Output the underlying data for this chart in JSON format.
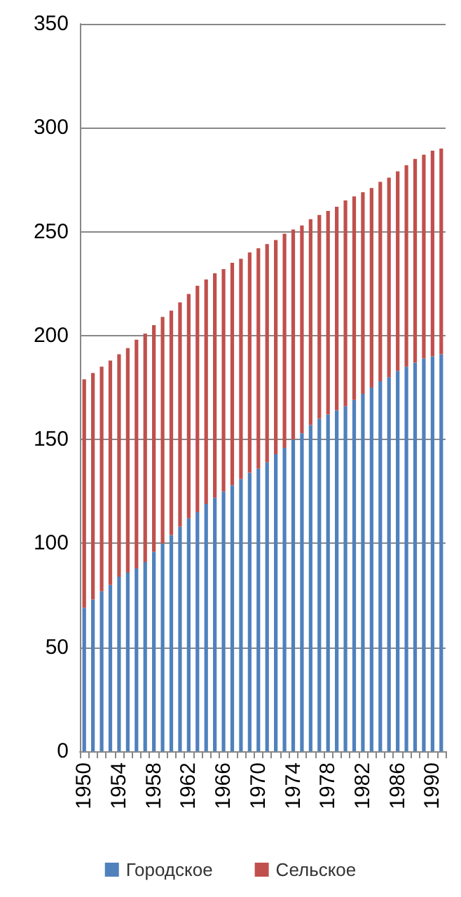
{
  "chart_data": {
    "type": "bar",
    "stacked": true,
    "categories": [
      "1950",
      null,
      null,
      null,
      "1954",
      null,
      null,
      null,
      "1958",
      null,
      null,
      null,
      "1962",
      null,
      null,
      null,
      "1966",
      null,
      null,
      null,
      "1970",
      null,
      null,
      null,
      "1974",
      null,
      null,
      null,
      "1978",
      null,
      null,
      null,
      "1982",
      null,
      null,
      null,
      "1986",
      null,
      null,
      null,
      "1990",
      null
    ],
    "series": [
      {
        "name": "Городское",
        "color": "#4f81bd",
        "values": [
          69,
          73,
          77,
          80,
          84,
          86,
          88,
          91,
          96,
          100,
          104,
          108,
          112,
          115,
          119,
          122,
          125,
          128,
          131,
          134,
          136,
          139,
          143,
          146,
          150,
          153,
          157,
          160,
          162,
          164,
          166,
          169,
          172,
          175,
          178,
          180,
          183,
          185,
          187,
          189,
          190,
          191
        ]
      },
      {
        "name": "Сельское",
        "color": "#c0504d",
        "values": [
          110,
          109,
          108,
          108,
          107,
          108,
          110,
          110,
          109,
          109,
          108,
          108,
          108,
          109,
          108,
          108,
          107,
          107,
          106,
          106,
          106,
          105,
          103,
          103,
          101,
          100,
          99,
          98,
          98,
          98,
          99,
          98,
          97,
          96,
          96,
          96,
          96,
          97,
          98,
          98,
          99,
          99
        ]
      }
    ],
    "ylim": [
      0,
      350
    ],
    "yticks": [
      0,
      50,
      100,
      150,
      200,
      250,
      300,
      350
    ],
    "grid": "y",
    "legend": "bottom"
  }
}
